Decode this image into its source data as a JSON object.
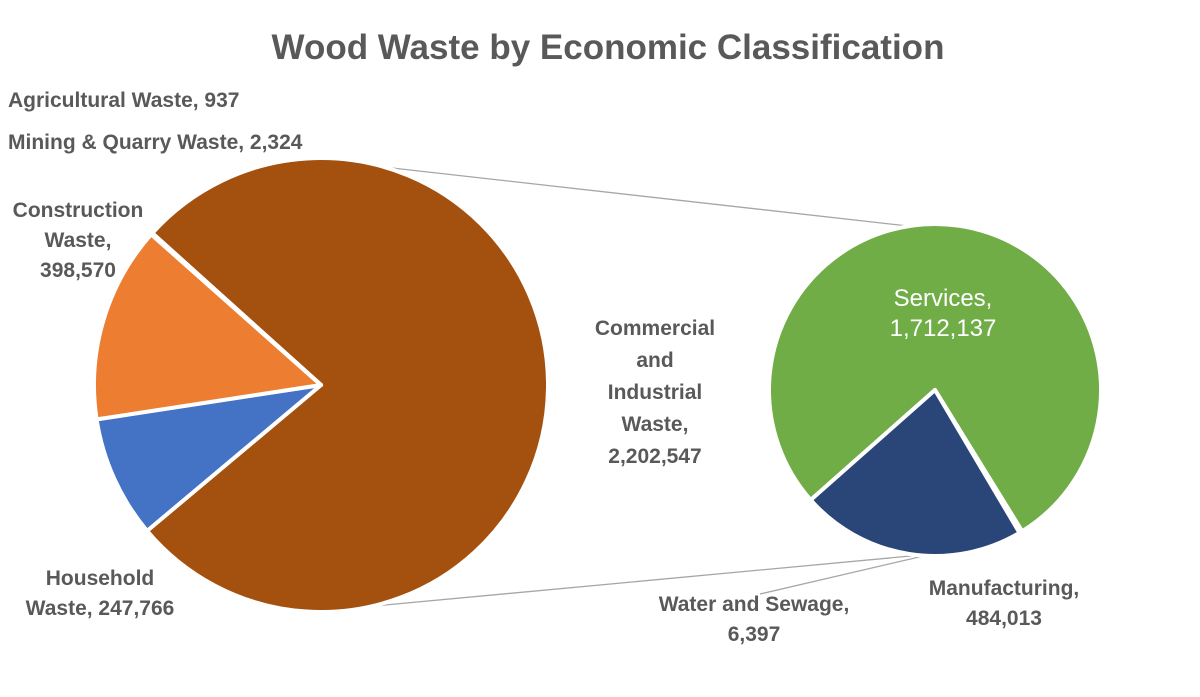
{
  "title": "Wood Waste by Economic Classification",
  "chart_data": {
    "type": "pie",
    "subtype": "pie-of-pie",
    "title": "Wood Waste by Economic Classification",
    "legend": "none",
    "primary_pie": {
      "categories": [
        "Commercial and Industrial Waste",
        "Household Waste",
        "Construction Waste",
        "Mining & Quarry Waste",
        "Agricultural Waste"
      ],
      "values": [
        2202547,
        247766,
        398570,
        2324,
        937
      ]
    },
    "secondary_pie": {
      "parent_category": "Commercial and Industrial Waste",
      "categories": [
        "Services",
        "Water and Sewage",
        "Manufacturing"
      ],
      "values": [
        1712137,
        6397,
        484013
      ]
    }
  },
  "labels": {
    "agricultural": "Agricultural Waste, 937",
    "mining": "Mining & Quarry Waste, 2,324",
    "construction": "Construction\nWaste,\n398,570",
    "household": "Household\nWaste, 247,766",
    "commercial_industrial": "Commercial\nand\nIndustrial\nWaste,\n2,202,547",
    "services": "Services,\n1,712,137",
    "manufacturing": "Manufacturing,\n484,013",
    "water_sewage": "Water and Sewage,\n6,397"
  },
  "colors": {
    "commercial_industrial": "#A4500E",
    "household": "#4472C4",
    "construction": "#ED7D31",
    "mining": "#FFC000",
    "agricultural": "#5B9BD5",
    "services": "#70AD47",
    "water_sewage": "#9DC3E6",
    "manufacturing": "#2A4678",
    "slice_border": "#FFFFFF",
    "connector_line": "#A6A6A6",
    "text": "#595959",
    "services_text": "#FFFFFF"
  }
}
